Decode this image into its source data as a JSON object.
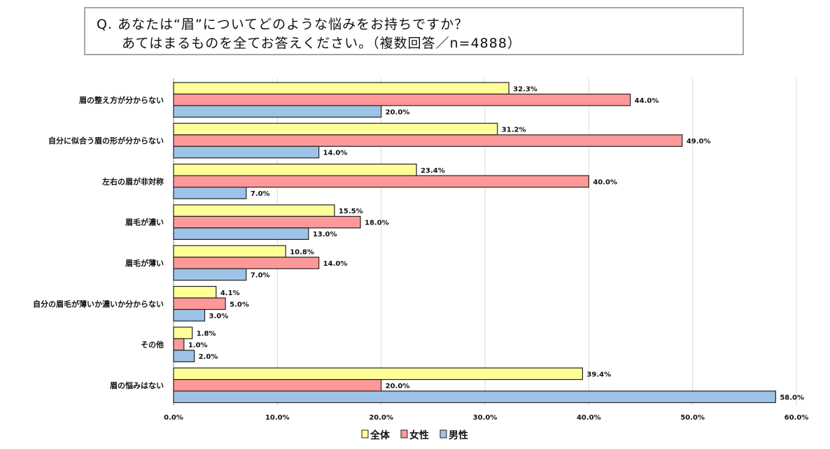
{
  "chart_data": {
    "type": "bar",
    "orientation": "horizontal",
    "title": [
      "Q. あなたは“眉”についてどのような悩みをお持ちですか？",
      "あてはまるものを全てお答えください。（複数回答／n=4888）"
    ],
    "categories": [
      "眉の整え方が分からない",
      "自分に似合う眉の形が分からない",
      "左右の眉が非対称",
      "眉毛が濃い",
      "眉毛が薄い",
      "自分の眉毛が薄いか濃いか分からない",
      "その他",
      "眉の悩みはない"
    ],
    "series": [
      {
        "name": "全体",
        "color": "#ffff99",
        "values": [
          32.3,
          31.2,
          23.4,
          15.5,
          10.8,
          4.1,
          1.8,
          39.4
        ]
      },
      {
        "name": "女性",
        "color": "#ff9999",
        "values": [
          44.0,
          49.0,
          40.0,
          18.0,
          14.0,
          5.0,
          1.0,
          20.0
        ]
      },
      {
        "name": "男性",
        "color": "#9dc3e6",
        "values": [
          20.0,
          14.0,
          7.0,
          13.0,
          7.0,
          3.0,
          2.0,
          58.0
        ]
      }
    ],
    "xlim": [
      0,
      60
    ],
    "xticks": [
      "0.0%",
      "10.0%",
      "20.0%",
      "30.0%",
      "40.0%",
      "50.0%",
      "60.0%"
    ],
    "xlabel": "",
    "ylabel": "",
    "grid": true,
    "legend": "bottom"
  }
}
